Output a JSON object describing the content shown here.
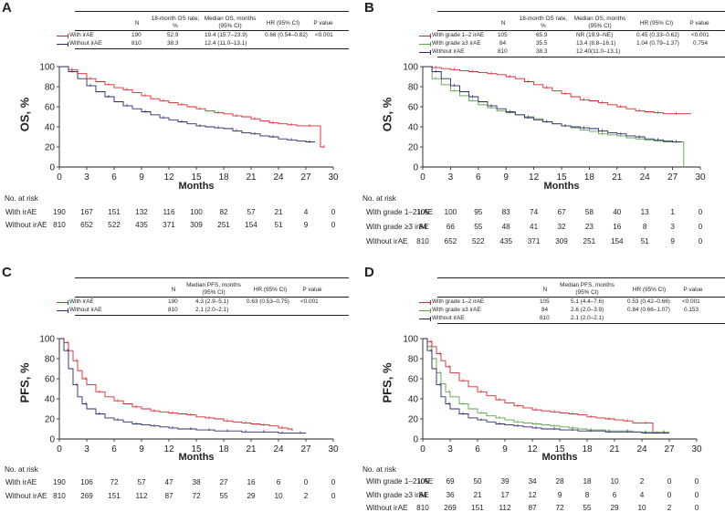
{
  "panels": [
    {
      "id": "A",
      "table": {
        "headers": [
          "N",
          "18-month OS rate, %",
          "Median OS, months (95% CI)",
          "HR (95% CI)",
          "P value"
        ],
        "rows": [
          {
            "label": "With  irAE",
            "color": "#d7262e",
            "n": "190",
            "rate": "52.9",
            "median": "19.4 (15.7–23.9)",
            "hr": "0.66 (0.54–0.82)",
            "p": "<0.001"
          },
          {
            "label": "Without irAE",
            "color": "#2b2a6b",
            "n": "810",
            "rate": "38.3",
            "median": "12.4 (11.0–13.1)",
            "hr": "",
            "p": ""
          }
        ]
      },
      "risk": {
        "title": "No. at risk",
        "rows": [
          {
            "label": "With irAE",
            "values": [
              "190",
              "167",
              "151",
              "132",
              "116",
              "100",
              "82",
              "57",
              "21",
              "4",
              "0"
            ]
          },
          {
            "label": "Without irAE",
            "values": [
              "810",
              "652",
              "522",
              "435",
              "371",
              "309",
              "251",
              "154",
              "51",
              "9",
              "0"
            ]
          }
        ]
      }
    },
    {
      "id": "B",
      "table": {
        "headers": [
          "N",
          "18-month OS rate, %",
          "Median OS, months (95% CI)",
          "HR (95% CI)",
          "P value"
        ],
        "rows": [
          {
            "label": "With grade 1–2 irAE",
            "color": "#d7262e",
            "n": "105",
            "rate": "65.9",
            "median": "NR (19.9–NE)",
            "hr": "0.45 (0.33–0.62)",
            "p": "<0.001"
          },
          {
            "label": "With grade ≥3 irAE",
            "color": "#5aa64a",
            "n": "84",
            "rate": "35.5",
            "median": "13.4 (8.8–16.1)",
            "hr": "1.04 (0.79–1.37)",
            "p": "0.754"
          },
          {
            "label": "Without irAE",
            "color": "#2b2a6b",
            "n": "810",
            "rate": "38.3",
            "median": "12.40(11.0–13.1)",
            "hr": "",
            "p": ""
          }
        ]
      },
      "risk": {
        "title": "No. at risk",
        "rows": [
          {
            "label": "With grade 1–2 irAE",
            "values": [
              "105",
              "100",
              "95",
              "83",
              "74",
              "67",
              "58",
              "40",
              "13",
              "1",
              "0"
            ]
          },
          {
            "label": "With grade ≥3 irAE",
            "values": [
              "84",
              "66",
              "55",
              "48",
              "41",
              "32",
              "23",
              "16",
              "8",
              "3",
              "0"
            ]
          },
          {
            "label": "Without irAE",
            "values": [
              "810",
              "652",
              "522",
              "435",
              "371",
              "309",
              "251",
              "154",
              "51",
              "9",
              "0"
            ]
          }
        ]
      }
    },
    {
      "id": "C",
      "table": {
        "headers": [
          "N",
          "Median PFS, months (95% CI)",
          "HR (95% CI)",
          "P value"
        ],
        "rows": [
          {
            "label": "With irAE",
            "color": "#d7262e",
            "n": "190",
            "median": "4.3 (2.9–5.1)",
            "hr": "0.63 (0.53–0.75)",
            "p": "<0.001"
          },
          {
            "label": "Without irAE",
            "color": "#2b2a6b",
            "n": "810",
            "median": "2.1 (2.0–2.1)",
            "hr": "",
            "p": ""
          }
        ]
      },
      "risk": {
        "title": "No. at risk",
        "rows": [
          {
            "label": "With irAE",
            "values": [
              "190",
              "106",
              "72",
              "57",
              "47",
              "38",
              "27",
              "16",
              "6",
              "0",
              "0"
            ]
          },
          {
            "label": "Without irAE",
            "values": [
              "810",
              "269",
              "151",
              "112",
              "87",
              "72",
              "55",
              "29",
              "10",
              "2",
              "0"
            ]
          }
        ]
      }
    },
    {
      "id": "D",
      "table": {
        "headers": [
          "N",
          "Median PFS, months (95% CI)",
          "HR (95% CI)",
          "P value"
        ],
        "rows": [
          {
            "label": "With grade 1–2 irAE",
            "color": "#d7262e",
            "n": "105",
            "median": "5.1 (4.4–7.6)",
            "hr": "0.53 (0.42–0.66)",
            "p": "<0.001"
          },
          {
            "label": "With grade ≥3 irAE",
            "color": "#5aa64a",
            "n": "84",
            "median": "2.6 (2.0–3.9)",
            "hr": "0.84 (0.66–1.07)",
            "p": "0.153"
          },
          {
            "label": "Without irAE",
            "color": "#2b2a6b",
            "n": "810",
            "median": "2.1 (2.0–2.1)",
            "hr": "",
            "p": ""
          }
        ]
      },
      "risk": {
        "title": "No. at risk",
        "rows": [
          {
            "label": "With grade 1–2 irAE",
            "values": [
              "105",
              "69",
              "50",
              "39",
              "34",
              "28",
              "18",
              "10",
              "2",
              "0",
              "0"
            ]
          },
          {
            "label": "With grade ≥3 irAE",
            "values": [
              "84",
              "36",
              "21",
              "17",
              "12",
              "9",
              "8",
              "6",
              "4",
              "0",
              "0"
            ]
          },
          {
            "label": "Without irAE",
            "values": [
              "810",
              "269",
              "151",
              "112",
              "87",
              "72",
              "55",
              "29",
              "10",
              "2",
              "0"
            ]
          }
        ]
      }
    }
  ],
  "chart_data": [
    {
      "panel": "A",
      "type": "line",
      "title": "",
      "xlabel": "Months",
      "ylabel": "OS, %",
      "xlim": [
        0,
        30
      ],
      "ylim": [
        0,
        100
      ],
      "xticks": [
        "0",
        "3",
        "6",
        "9",
        "12",
        "15",
        "18",
        "21",
        "24",
        "27",
        "30"
      ],
      "yticks": [
        "0",
        "20",
        "40",
        "60",
        "80",
        "100"
      ],
      "series": [
        {
          "name": "With irAE",
          "color": "#d7262e",
          "x": [
            0,
            1,
            2,
            3,
            4,
            5,
            6,
            7,
            8,
            9,
            10,
            11,
            12,
            13,
            14,
            15,
            16,
            17,
            18,
            19,
            20,
            21,
            22,
            23,
            24,
            25,
            26,
            27,
            27.6,
            28.6,
            29
          ],
          "y": [
            100,
            97,
            93,
            88,
            85,
            82,
            79,
            77,
            74,
            71,
            68,
            66,
            64,
            62,
            60,
            58,
            56,
            54,
            52.9,
            51,
            50,
            48,
            46,
            44,
            43,
            42,
            41,
            41,
            41,
            20,
            20
          ]
        },
        {
          "name": "Without irAE",
          "color": "#2b2a6b",
          "x": [
            0,
            1,
            2,
            3,
            4,
            5,
            6,
            7,
            8,
            9,
            10,
            11,
            12,
            13,
            14,
            15,
            16,
            17,
            18,
            19,
            20,
            21,
            22,
            23,
            24,
            25,
            26,
            27,
            28
          ],
          "y": [
            100,
            95,
            88,
            81,
            75,
            70,
            65,
            61,
            58,
            55,
            52,
            49,
            47,
            45,
            43,
            41,
            40,
            39,
            38.3,
            36,
            34,
            33,
            31,
            30,
            28,
            27,
            26,
            25,
            25
          ]
        }
      ]
    },
    {
      "panel": "B",
      "type": "line",
      "title": "",
      "xlabel": "Months",
      "ylabel": "OS, %",
      "xlim": [
        0,
        30
      ],
      "ylim": [
        0,
        100
      ],
      "xticks": [
        "0",
        "3",
        "6",
        "9",
        "12",
        "15",
        "18",
        "21",
        "24",
        "27",
        "30"
      ],
      "yticks": [
        "0",
        "20",
        "40",
        "60",
        "80",
        "100"
      ],
      "series": [
        {
          "name": "With grade 1–2 irAE",
          "color": "#d7262e",
          "x": [
            0,
            1,
            2,
            3,
            4,
            5,
            6,
            7,
            8,
            9,
            10,
            11,
            12,
            13,
            14,
            15,
            16,
            17,
            18,
            19,
            20,
            21,
            22,
            23,
            24,
            25,
            26,
            27,
            28,
            29
          ],
          "y": [
            100,
            99,
            98,
            97,
            96,
            95,
            94,
            93,
            92,
            90,
            88,
            85,
            82,
            79,
            76,
            73,
            70,
            67,
            65.9,
            64,
            62,
            60,
            58,
            56,
            55,
            54,
            53,
            53,
            53,
            53
          ]
        },
        {
          "name": "With grade ≥3 irAE",
          "color": "#5aa64a",
          "x": [
            0,
            1,
            2,
            3,
            4,
            5,
            6,
            7,
            8,
            9,
            10,
            11,
            12,
            13,
            14,
            15,
            16,
            17,
            18,
            19,
            20,
            21,
            22,
            23,
            24,
            25,
            26,
            27,
            28,
            28.2
          ],
          "y": [
            100,
            88,
            82,
            76,
            71,
            66,
            62,
            59,
            56,
            54,
            52,
            50,
            48,
            45,
            43,
            41,
            39,
            37,
            35.5,
            33,
            32,
            31,
            29,
            28,
            27,
            26,
            25,
            25,
            25,
            0
          ]
        },
        {
          "name": "Without irAE",
          "color": "#2b2a6b",
          "x": [
            0,
            1,
            2,
            3,
            4,
            5,
            6,
            7,
            8,
            9,
            10,
            11,
            12,
            13,
            14,
            15,
            16,
            17,
            18,
            19,
            20,
            21,
            22,
            23,
            24,
            25,
            26,
            27,
            28
          ],
          "y": [
            100,
            95,
            88,
            81,
            75,
            70,
            65,
            61,
            58,
            55,
            52,
            49,
            47,
            45,
            43,
            41,
            40,
            39,
            38.3,
            36,
            34,
            33,
            31,
            30,
            28,
            27,
            26,
            25,
            25
          ]
        }
      ]
    },
    {
      "panel": "C",
      "type": "line",
      "title": "",
      "xlabel": "Months",
      "ylabel": "PFS, %",
      "xlim": [
        0,
        30
      ],
      "ylim": [
        0,
        100
      ],
      "xticks": [
        "0",
        "3",
        "6",
        "9",
        "12",
        "15",
        "18",
        "21",
        "24",
        "27",
        "30"
      ],
      "yticks": [
        "0",
        "20",
        "40",
        "60",
        "80",
        "100"
      ],
      "series": [
        {
          "name": "With irAE",
          "color": "#d7262e",
          "x": [
            0,
            0.5,
            1,
            1.5,
            2,
            2.5,
            3,
            4,
            5,
            6,
            7,
            8,
            9,
            10,
            11,
            12,
            13,
            14,
            15,
            16,
            17,
            18,
            19,
            20,
            21,
            22,
            23,
            24,
            25,
            25.5
          ],
          "y": [
            100,
            96,
            88,
            78,
            68,
            60,
            54,
            47,
            42,
            38,
            35,
            32,
            30,
            28,
            27,
            26,
            25,
            24,
            22,
            21,
            20,
            18,
            17,
            16,
            15,
            14,
            13,
            11,
            10,
            8
          ]
        },
        {
          "name": "Without irAE",
          "color": "#2b2a6b",
          "x": [
            0,
            0.5,
            1,
            1.5,
            2,
            2.5,
            3,
            4,
            5,
            6,
            7,
            8,
            9,
            10,
            11,
            12,
            13,
            14,
            15,
            16,
            17,
            18,
            19,
            20,
            21,
            22,
            23,
            24,
            25,
            26,
            27
          ],
          "y": [
            100,
            88,
            70,
            54,
            42,
            35,
            30,
            25,
            21,
            19,
            17,
            15,
            14,
            13,
            12,
            11,
            10,
            10,
            9,
            9,
            8,
            8,
            8,
            7,
            7,
            7,
            7,
            6,
            6,
            6,
            6
          ]
        }
      ]
    },
    {
      "panel": "D",
      "type": "line",
      "title": "",
      "xlabel": "Months",
      "ylabel": "PFS, %",
      "xlim": [
        0,
        30
      ],
      "ylim": [
        0,
        100
      ],
      "xticks": [
        "0",
        "3",
        "6",
        "9",
        "12",
        "15",
        "18",
        "21",
        "24",
        "27",
        "30"
      ],
      "yticks": [
        "0",
        "20",
        "40",
        "60",
        "80",
        "100"
      ],
      "series": [
        {
          "name": "With grade 1–2 irAE",
          "color": "#d7262e",
          "x": [
            0,
            0.5,
            1,
            1.5,
            2,
            2.5,
            3,
            4,
            5,
            6,
            7,
            8,
            9,
            10,
            11,
            12,
            13,
            14,
            15,
            16,
            17,
            18,
            19,
            20,
            21,
            22,
            23,
            24,
            25,
            25.2,
            26
          ],
          "y": [
            100,
            97,
            92,
            85,
            78,
            72,
            66,
            58,
            52,
            47,
            43,
            39,
            36,
            33,
            31,
            29,
            28,
            27,
            26,
            25,
            24,
            22,
            21,
            20,
            19,
            18,
            16,
            16,
            16,
            6,
            6
          ]
        },
        {
          "name": "With grade ≥3 irAE",
          "color": "#5aa64a",
          "x": [
            0,
            0.5,
            1,
            1.5,
            2,
            2.5,
            3,
            4,
            5,
            6,
            7,
            8,
            9,
            10,
            11,
            12,
            13,
            14,
            15,
            16,
            17,
            18,
            19,
            20,
            21,
            22,
            23,
            24,
            25,
            26,
            27
          ],
          "y": [
            100,
            92,
            80,
            66,
            55,
            47,
            42,
            35,
            30,
            26,
            23,
            21,
            19,
            17,
            16,
            15,
            14,
            13,
            12,
            11,
            10,
            9,
            9,
            8,
            8,
            8,
            7,
            7,
            7,
            7,
            7
          ]
        },
        {
          "name": "Without irAE",
          "color": "#2b2a6b",
          "x": [
            0,
            0.5,
            1,
            1.5,
            2,
            2.5,
            3,
            4,
            5,
            6,
            7,
            8,
            9,
            10,
            11,
            12,
            13,
            14,
            15,
            16,
            17,
            18,
            19,
            20,
            21,
            22,
            23,
            24,
            25,
            26,
            27
          ],
          "y": [
            100,
            88,
            70,
            54,
            42,
            35,
            30,
            25,
            21,
            19,
            17,
            15,
            14,
            13,
            12,
            11,
            10,
            10,
            9,
            9,
            8,
            8,
            8,
            7,
            7,
            7,
            7,
            6,
            6,
            6,
            6
          ]
        }
      ]
    }
  ]
}
